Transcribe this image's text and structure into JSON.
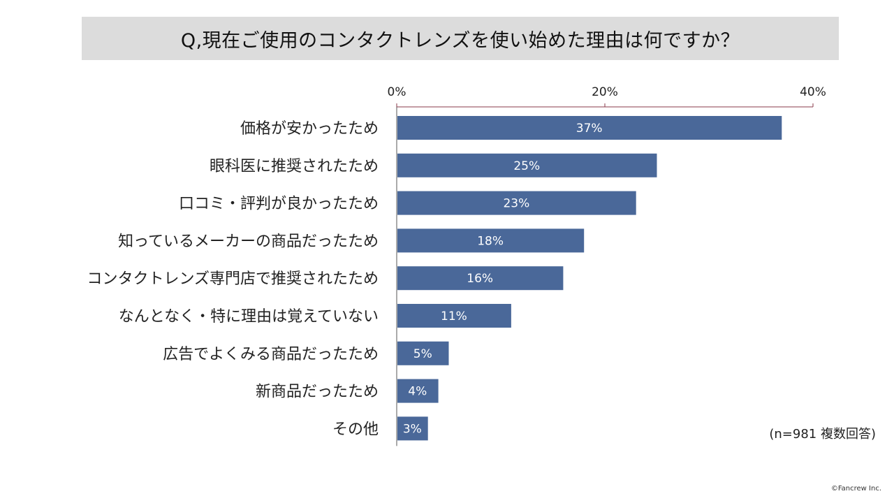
{
  "title": "Q,現在ご使用のコンタクトレンズを使い始めた理由は何ですか？",
  "note": "(n=981 複数回答)",
  "copyright": "©Fancrew Inc.",
  "chart_data": {
    "type": "bar",
    "orientation": "horizontal",
    "categories": [
      "価格が安かったため",
      "眼科医に推奨されたため",
      "口コミ・評判が良かったため",
      "知っているメーカーの商品だったため",
      "コンタクトレンズ専門店で推奨されたため",
      "なんとなく・特に理由は覚えていない",
      "広告でよくみる商品だったため",
      "新商品だったため",
      "その他"
    ],
    "values": [
      37,
      25,
      23,
      18,
      16,
      11,
      5,
      4,
      3
    ],
    "value_labels": [
      "37%",
      "25%",
      "23%",
      "18%",
      "16%",
      "11%",
      "5%",
      "4%",
      "3%"
    ],
    "xlim": [
      0,
      40
    ],
    "xticks": [
      0,
      20,
      40
    ],
    "xtick_labels": [
      "0%",
      "20%",
      "40%"
    ],
    "axis_position": "top",
    "grid": false,
    "bar_color": "#4a6899",
    "axis_color": "#8a3a4a"
  }
}
